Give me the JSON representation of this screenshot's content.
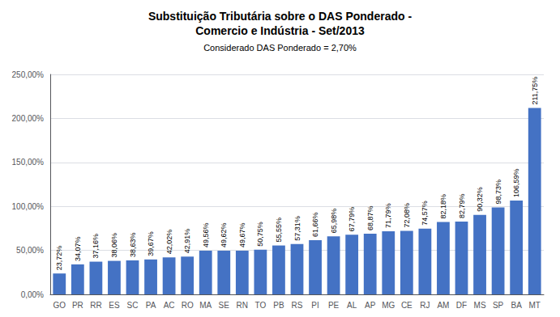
{
  "chart_data": {
    "type": "bar",
    "title": "Substituição Tributária sobre o DAS Ponderado -\nComercio e Indústria - Set/2013",
    "subtitle": "Considerado DAS Ponderado = 2,70%",
    "categories": [
      "GO",
      "PR",
      "RR",
      "ES",
      "SC",
      "PA",
      "AC",
      "RO",
      "MA",
      "SE",
      "RN",
      "TO",
      "PB",
      "RS",
      "PI",
      "PE",
      "AL",
      "AP",
      "MG",
      "CE",
      "RJ",
      "AM",
      "DF",
      "MS",
      "SP",
      "BA",
      "MT"
    ],
    "values": [
      23.72,
      34.07,
      37.16,
      38.06,
      38.63,
      39.67,
      42.02,
      42.91,
      49.56,
      49.62,
      49.67,
      50.75,
      55.55,
      57.31,
      61.66,
      65.98,
      67.79,
      68.87,
      71.79,
      72.08,
      74.57,
      82.18,
      82.79,
      90.32,
      98.73,
      106.59,
      211.75
    ],
    "value_labels": [
      "23,72%",
      "34,07%",
      "37,16%",
      "38,06%",
      "38,63%",
      "39,67%",
      "42,02%",
      "42,91%",
      "49,56%",
      "49,62%",
      "49,67%",
      "50,75%",
      "55,55%",
      "57,31%",
      "61,66%",
      "65,98%",
      "67,79%",
      "68,87%",
      "71,79%",
      "72,08%",
      "74,57%",
      "82,18%",
      "82,79%",
      "90,32%",
      "98,73%",
      "106,59%",
      "211,75%"
    ],
    "data_labels": true,
    "color": "#4472C4",
    "ylim": [
      0,
      250
    ],
    "yticks": [
      {
        "value": 0,
        "label": "0,00%"
      },
      {
        "value": 50,
        "label": "50,00%"
      },
      {
        "value": 100,
        "label": "100,00%"
      },
      {
        "value": 150,
        "label": "150,00%"
      },
      {
        "value": 200,
        "label": "200,00%"
      },
      {
        "value": 250,
        "label": "250,00%"
      }
    ],
    "grid": true
  }
}
